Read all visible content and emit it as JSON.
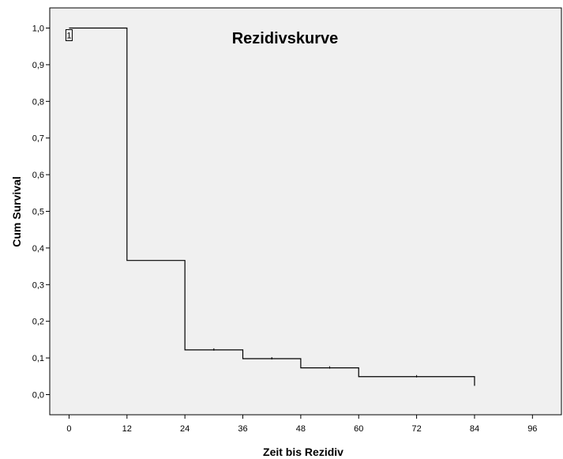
{
  "chart_data": {
    "type": "line",
    "title": "Rezidivskurve",
    "xlabel": "Zeit bis Rezidiv",
    "ylabel": "Cum Survival",
    "xlim": [
      -4,
      102
    ],
    "ylim": [
      -0.055,
      1.055
    ],
    "x_ticks": [
      0,
      12,
      24,
      36,
      48,
      60,
      72,
      84,
      96
    ],
    "x_tick_labels": [
      "0",
      "12",
      "24",
      "36",
      "48",
      "60",
      "72",
      "84",
      "96"
    ],
    "y_ticks": [
      0.0,
      0.1,
      0.2,
      0.3,
      0.4,
      0.5,
      0.6,
      0.7,
      0.8,
      0.9,
      1.0
    ],
    "y_tick_labels": [
      "0,0",
      "0,1",
      "0,2",
      "0,3",
      "0,4",
      "0,5",
      "0,6",
      "0,7",
      "0,8",
      "0,9",
      "1,0"
    ],
    "grid": false,
    "plot_background": "#f0f0f0",
    "line_color": "#000000",
    "series": [
      {
        "name": "1",
        "step_x": [
          0,
          12,
          24,
          36,
          48,
          60,
          84
        ],
        "step_y": [
          1.0,
          0.366,
          0.122,
          0.098,
          0.073,
          0.049,
          0.049
        ],
        "end_drop_to": 0.024,
        "censor_x": [
          30,
          42,
          54,
          72
        ]
      }
    ]
  }
}
